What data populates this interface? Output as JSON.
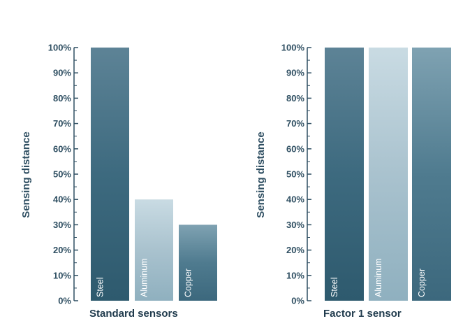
{
  "chart_data": [
    {
      "type": "bar",
      "title": "",
      "xlabel": "Standard sensors",
      "ylabel": "Sensing distance",
      "categories": [
        "Steel",
        "Aluminum",
        "Copper"
      ],
      "values": [
        100,
        40,
        30
      ],
      "ylim": [
        0,
        100
      ],
      "yticks": [
        "0%",
        "10%",
        "20%",
        "30%",
        "40%",
        "50%",
        "60%",
        "70%",
        "80%",
        "90%",
        "100%"
      ],
      "grid": false,
      "bar_colors": [
        "#3f6b80",
        "#a7c0cd",
        "#5a8497"
      ]
    },
    {
      "type": "bar",
      "title": "",
      "xlabel": "Factor 1 sensor",
      "ylabel": "Sensing distance",
      "categories": [
        "Steel",
        "Aluminum",
        "Copper"
      ],
      "values": [
        100,
        100,
        100
      ],
      "ylim": [
        0,
        100
      ],
      "yticks": [
        "0%",
        "10%",
        "20%",
        "30%",
        "40%",
        "50%",
        "60%",
        "70%",
        "80%",
        "90%",
        "100%"
      ],
      "grid": false,
      "bar_colors": [
        "#3f6b80",
        "#a7c0cd",
        "#4c7689"
      ]
    }
  ]
}
